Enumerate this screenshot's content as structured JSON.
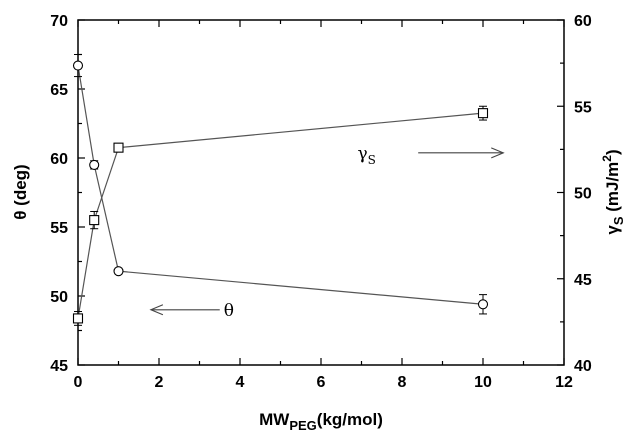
{
  "chart_data": {
    "type": "scatter",
    "x": [
      0,
      0.4,
      1,
      10
    ],
    "xlabel": {
      "main": "MW",
      "sub": "PEG",
      "rest": "(kg/mol)"
    },
    "ylabel_left": "θ (deg)",
    "ylabel_right": {
      "main": "γ",
      "sub": "S",
      "rest": " (mJ/m",
      "sup": "2",
      "end": ")"
    },
    "xlim": [
      0,
      12
    ],
    "ylim_left": [
      45,
      70
    ],
    "ylim_right": [
      40,
      60
    ],
    "xticks": [
      0,
      2,
      4,
      6,
      8,
      10,
      12
    ],
    "yticks_left": [
      45,
      50,
      55,
      60,
      65,
      70
    ],
    "yticks_right": [
      40,
      45,
      50,
      55,
      60
    ],
    "grid": false,
    "series": [
      {
        "name": "θ",
        "axis": "left",
        "marker": "circle",
        "x": [
          0,
          0.4,
          1,
          10
        ],
        "values": [
          66.7,
          59.5,
          51.8,
          49.4
        ],
        "errors": [
          0.8,
          0.3,
          0.2,
          0.7
        ]
      },
      {
        "name": "γS",
        "axis": "right",
        "marker": "square",
        "x": [
          0,
          0.4,
          1,
          10
        ],
        "values": [
          42.7,
          48.4,
          52.6,
          54.6
        ],
        "errors": [
          0.4,
          0.5,
          0.2,
          0.4
        ]
      }
    ],
    "annotations": [
      {
        "label": "θ",
        "series": "θ",
        "direction": "left",
        "arrow_from": [
          3.5,
          49.0
        ],
        "arrow_to": [
          1.8,
          49.0
        ],
        "text_at": [
          3.6,
          49.0
        ]
      },
      {
        "label": "γ",
        "sub": "S",
        "series": "γS",
        "direction": "right",
        "arrow_from": [
          8.4,
          52.3
        ],
        "arrow_to": [
          10.5,
          52.3
        ],
        "text_at": [
          6.9,
          52.3
        ]
      }
    ]
  }
}
